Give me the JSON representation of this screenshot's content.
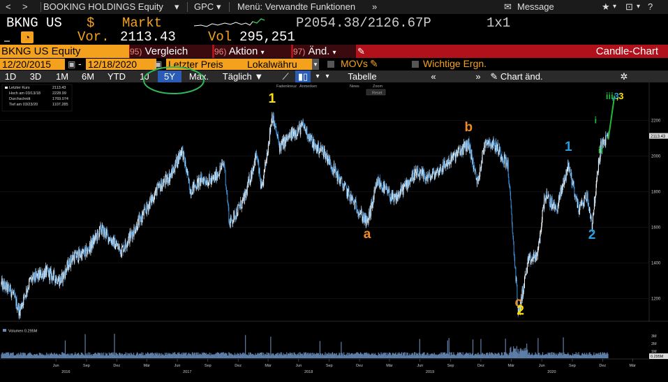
{
  "topnav": {
    "back": "<",
    "forward": ">",
    "security": "BOOKING HOLDINGS Equity",
    "gpc": "GPC",
    "menu": "Menü: Verwandte Funktionen",
    "message": "Message"
  },
  "quote": {
    "ticker": "BKNG US",
    "currency": "$",
    "market": "Markt",
    "prices": "P2054.38/2126.67P",
    "size": "1x1",
    "prev_label": "Vor.",
    "prev_value": "2113.43",
    "vol_label": "Vol",
    "vol_value": "295,251"
  },
  "funcbar": {
    "security": "BKNG US Equity",
    "f95": "95)",
    "f95_label": "Vergleich",
    "f96": "96)",
    "f96_label": "Aktion",
    "f97": "97)",
    "f97_label": "Änd.",
    "title": "Candle-Chart"
  },
  "daterow": {
    "start": "12/20/2015",
    "dash": "-",
    "end": "12/18/2020",
    "field": "Letzter Preis",
    "currency": "Lokalwähru",
    "movs": "MOVs",
    "events": "Wichtige Ergn."
  },
  "toolbar": {
    "periods": [
      "1D",
      "3D",
      "1M",
      "6M",
      "YTD",
      "1J",
      "5Y",
      "Max."
    ],
    "selected": "5Y",
    "freq": "Täglich",
    "table": "Tabelle",
    "chart_edit": "Chart änd."
  },
  "chart_tools": [
    "Fadenkreuz",
    "Anmerken",
    "News",
    "Zoom",
    "Reset"
  ],
  "legend": {
    "last_label": "Letzter Kurs",
    "last_value": "2113.43",
    "high_label": "Hoch am 03/13/18",
    "high_value": "2228.99",
    "avg_label": "Durchschnitt",
    "avg_value": "1769.074",
    "low_label": "Tief am 03/23/20",
    "low_value": "1107.285"
  },
  "volume_legend": "Volumen 0.295M",
  "colors": {
    "accent_orange": "#f4a21e",
    "function_red": "#b0111a",
    "candle_up": "#ffffff",
    "candle_down": "#3a8fd8",
    "wave_yellow": "#ffe100",
    "wave_orange": "#f08a24",
    "wave_blue": "#2a9de0",
    "wave_green": "#22b83a",
    "selection_circle": "#2fb85a"
  },
  "chart_data": {
    "type": "candlestick",
    "title": "",
    "xlabel": "",
    "ylabel": "",
    "ylim": [
      1100,
      2350
    ],
    "y_ticks": [
      1200,
      1400,
      1600,
      1800,
      2000,
      2200
    ],
    "x_ticks": [
      "Jun",
      "Sep",
      "Dez",
      "Mär",
      "Jun",
      "Sep",
      "Dez",
      "Mär",
      "Jun",
      "Sep",
      "Dez",
      "Mär",
      "Jun",
      "Sep",
      "Dez",
      "Mär",
      "Jun",
      "Sep",
      "Dez",
      "Mär"
    ],
    "years": [
      "2016",
      "2017",
      "2018",
      "2019",
      "2020",
      "2021"
    ],
    "last_price_label": "2113.43",
    "path": [
      [
        "2015-12-20",
        1280
      ],
      [
        "2016-01-20",
        1240
      ],
      [
        "2016-02-12",
        1130
      ],
      [
        "2016-03-15",
        1300
      ],
      [
        "2016-05-01",
        1350
      ],
      [
        "2016-06-15",
        1300
      ],
      [
        "2016-07-20",
        1430
      ],
      [
        "2016-09-01",
        1460
      ],
      [
        "2016-10-15",
        1590
      ],
      [
        "2016-12-15",
        1470
      ],
      [
        "2017-02-15",
        1660
      ],
      [
        "2017-04-01",
        1810
      ],
      [
        "2017-05-15",
        1900
      ],
      [
        "2017-06-15",
        2040
      ],
      [
        "2017-07-10",
        1810
      ],
      [
        "2017-08-15",
        1870
      ],
      [
        "2017-09-15",
        1860
      ],
      [
        "2017-10-20",
        1960
      ],
      [
        "2017-11-05",
        1620
      ],
      [
        "2017-12-20",
        1760
      ],
      [
        "2018-01-25",
        2010
      ],
      [
        "2018-02-10",
        1800
      ],
      [
        "2018-03-13",
        2229
      ],
      [
        "2018-04-05",
        2050
      ],
      [
        "2018-05-10",
        2120
      ],
      [
        "2018-06-15",
        2170
      ],
      [
        "2018-07-20",
        2050
      ],
      [
        "2018-08-15",
        2030
      ],
      [
        "2018-10-01",
        1870
      ],
      [
        "2018-12-24",
        1620
      ],
      [
        "2019-01-25",
        1860
      ],
      [
        "2019-03-15",
        1750
      ],
      [
        "2019-05-15",
        1900
      ],
      [
        "2019-06-30",
        1880
      ],
      [
        "2019-08-15",
        1950
      ],
      [
        "2019-10-01",
        2030
      ],
      [
        "2019-10-25",
        2070
      ],
      [
        "2019-11-20",
        1850
      ],
      [
        "2019-12-15",
        2090
      ],
      [
        "2020-01-15",
        2060
      ],
      [
        "2020-02-20",
        1950
      ],
      [
        "2020-03-23",
        1107
      ],
      [
        "2020-04-20",
        1400
      ],
      [
        "2020-05-20",
        1450
      ],
      [
        "2020-06-10",
        1780
      ],
      [
        "2020-07-15",
        1700
      ],
      [
        "2020-08-20",
        1950
      ],
      [
        "2020-09-20",
        1700
      ],
      [
        "2020-10-15",
        1780
      ],
      [
        "2020-10-30",
        1620
      ],
      [
        "2020-11-25",
        2050
      ],
      [
        "2020-12-18",
        2113
      ]
    ],
    "volume_ticks": [
      "1M",
      "2M",
      "3M"
    ],
    "volume_value": "0.295M",
    "annotations": [
      {
        "label": "1",
        "date": "2018-03-13",
        "price": 2300,
        "color": "#ffe100"
      },
      {
        "label": "a",
        "date": "2018-12-24",
        "price": 1540,
        "color": "#f08a24"
      },
      {
        "label": "b",
        "date": "2019-10-25",
        "price": 2140,
        "color": "#f08a24"
      },
      {
        "label": "c",
        "date": "2020-03-23",
        "price": 1155,
        "color": "#f08a24"
      },
      {
        "label": "2",
        "date": "2020-03-29",
        "price": 1110,
        "color": "#ffe100"
      },
      {
        "label": "1",
        "date": "2020-08-20",
        "price": 2030,
        "color": "#2a9de0"
      },
      {
        "label": "2",
        "date": "2020-10-30",
        "price": 1535,
        "color": "#2a9de0"
      },
      {
        "label": "i",
        "date": "2020-11-10",
        "price": 2185,
        "color": "#22b83a"
      },
      {
        "label": "ii",
        "date": "2020-11-25",
        "price": 2015,
        "color": "#22b83a"
      },
      {
        "label": "iii",
        "date": "2020-12-22",
        "price": 2320,
        "color": "#22b83a"
      },
      {
        "label": ",3",
        "date": "2021-01-08",
        "price": 2320,
        "color": "#2a9de0"
      },
      {
        "label": ",3",
        "date": "2021-01-22",
        "price": 2320,
        "color": "#ffe100"
      }
    ]
  }
}
